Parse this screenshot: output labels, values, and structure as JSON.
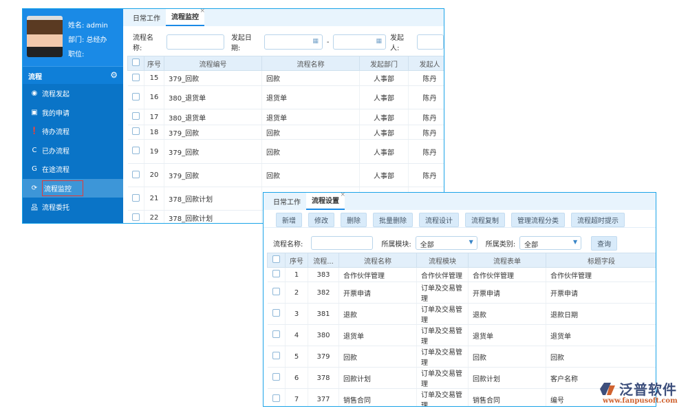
{
  "monitor_window": {
    "user": {
      "name": "姓名: admin",
      "dept": "部门: 总经办",
      "title": "职位:"
    },
    "nav": {
      "header": "流程",
      "items": [
        {
          "label": "流程发起",
          "icon": "podcast-icon"
        },
        {
          "label": "我的申请",
          "icon": "contact-card-icon"
        },
        {
          "label": "待办流程",
          "icon": "exclamation-circle-icon"
        },
        {
          "label": "已办流程",
          "icon": "refresh-arrow-icon"
        },
        {
          "label": "在途流程",
          "icon": "google-plus-icon"
        },
        {
          "label": "流程监控",
          "icon": "sync-icon",
          "active": true
        },
        {
          "label": "流程委托",
          "icon": "sitemap-icon"
        }
      ]
    },
    "tabs": [
      {
        "label": "日常工作"
      },
      {
        "label": "流程监控",
        "active": true
      }
    ],
    "filter": {
      "name_label": "流程名称:",
      "date_label": "发起日期:",
      "dash": "-",
      "initiator_label": "发起人:"
    },
    "columns": [
      "序号",
      "流程编号",
      "流程名称",
      "发起部门",
      "发起人"
    ],
    "rows": [
      [
        "15",
        "379_回款",
        "回款",
        "人事部",
        "陈丹"
      ],
      [
        "16",
        "380_退货单",
        "退货单",
        "人事部",
        "陈丹"
      ],
      [
        "17",
        "380_退货单",
        "退货单",
        "人事部",
        "陈丹"
      ],
      [
        "18",
        "379_回款",
        "回款",
        "人事部",
        "陈丹"
      ],
      [
        "19",
        "379_回款",
        "回款",
        "人事部",
        "陈丹"
      ],
      [
        "20",
        "379_回款",
        "回款",
        "人事部",
        "陈丹"
      ],
      [
        "21",
        "378_回款计划",
        "",
        "",
        ""
      ],
      [
        "22",
        "378_回款计划",
        "",
        "",
        ""
      ]
    ]
  },
  "settings_window": {
    "tabs": [
      {
        "label": "日常工作"
      },
      {
        "label": "流程设置",
        "active": true
      }
    ],
    "buttons": [
      "新增",
      "修改",
      "删除",
      "批量删除",
      "流程设计",
      "流程复制",
      "管理流程分类",
      "流程超时提示"
    ],
    "filter": {
      "name_label": "流程名称:",
      "module_label": "所属模块:",
      "module_value": "全部",
      "category_label": "所属类别:",
      "category_value": "全部",
      "query": "查询"
    },
    "columns": [
      "序号",
      "流程...",
      "流程名称",
      "流程模块",
      "流程表单",
      "标题字段"
    ],
    "rows": [
      [
        "1",
        "383",
        "合作伙伴管理",
        "合作伙伴管理",
        "合作伙伴管理",
        "合作伙伴管理"
      ],
      [
        "2",
        "382",
        "开票申请",
        "订单及交易管理",
        "开票申请",
        "开票申请"
      ],
      [
        "3",
        "381",
        "退款",
        "订单及交易管理",
        "退款",
        "退款日期"
      ],
      [
        "4",
        "380",
        "退货单",
        "订单及交易管理",
        "退货单",
        "退货单"
      ],
      [
        "5",
        "379",
        "回款",
        "订单及交易管理",
        "回款",
        "回款"
      ],
      [
        "6",
        "378",
        "回款计划",
        "订单及交易管理",
        "回款计划",
        "客户名称"
      ],
      [
        "7",
        "377",
        "销售合同",
        "订单及交易管理",
        "销售合同",
        "编号"
      ]
    ]
  },
  "logo": {
    "name": "泛普软件",
    "url": "www.fanpusoft.com",
    "colors": {
      "primary": "#3d4f7c",
      "accent": "#d0622f"
    }
  }
}
